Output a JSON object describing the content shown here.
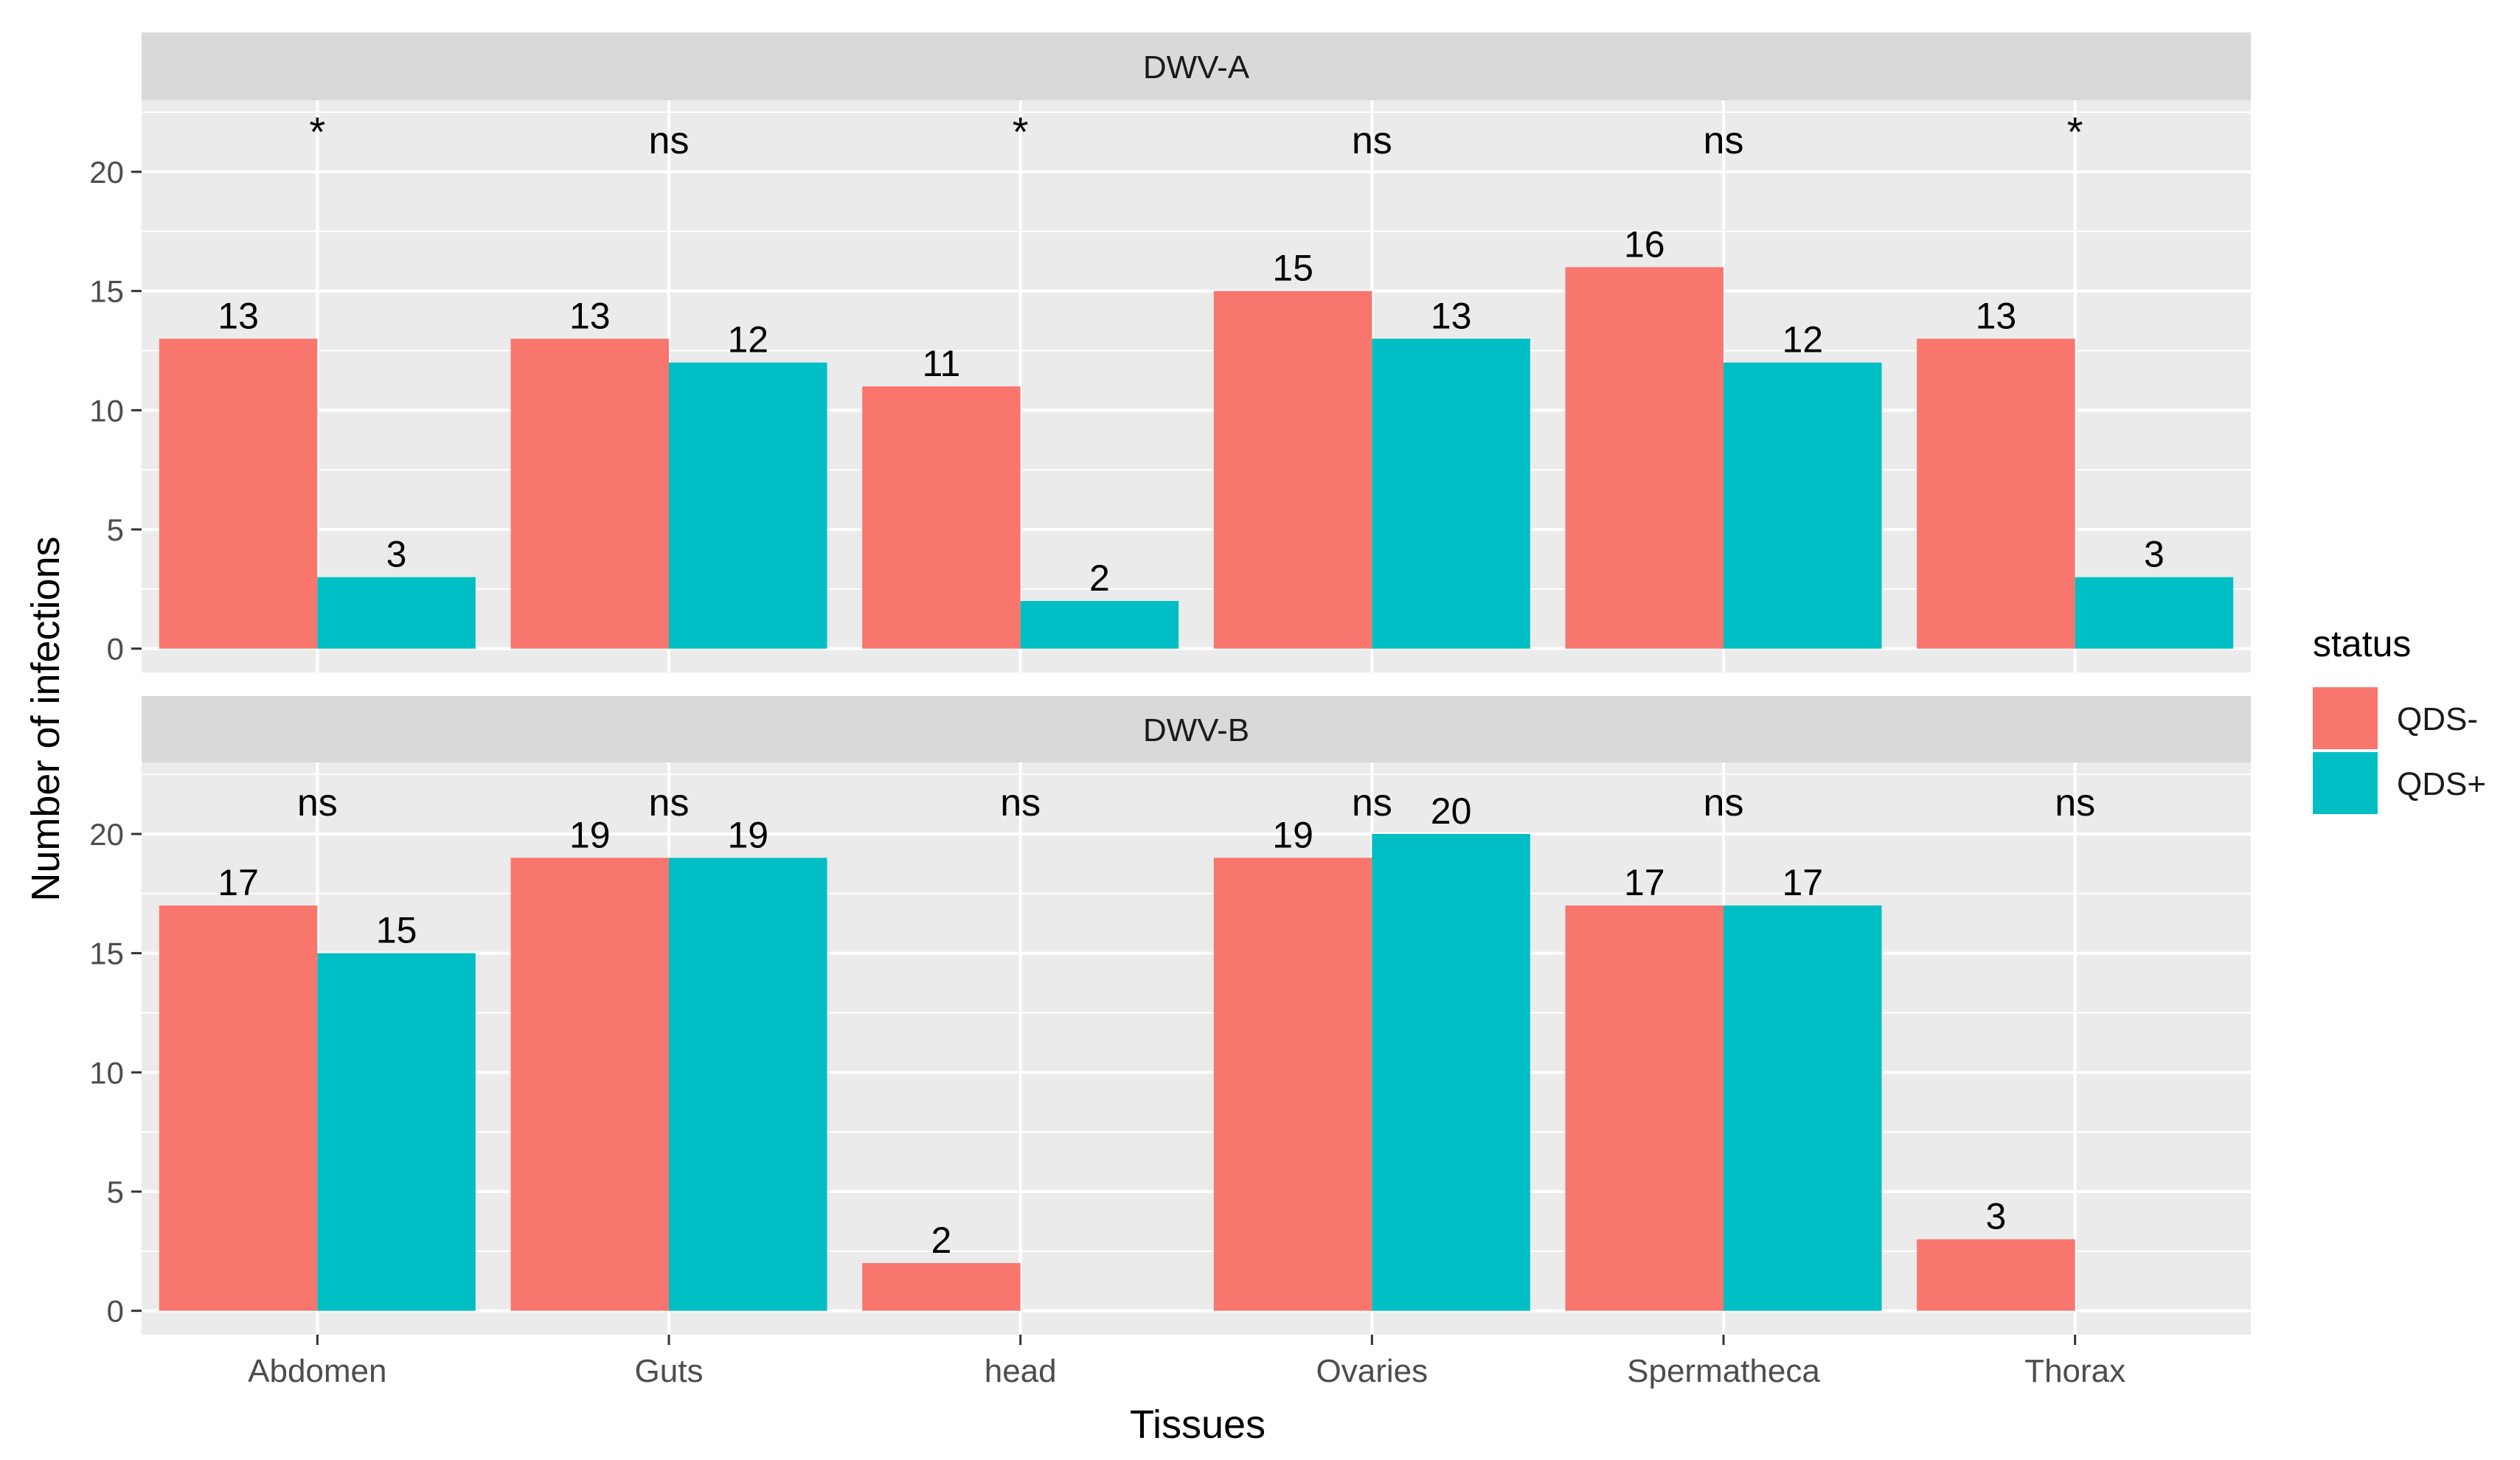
{
  "chart_data": {
    "type": "bar",
    "layout": "faceted",
    "xlabel": "Tissues",
    "ylabel": "Number of infections",
    "categories": [
      "Abdomen",
      "Guts",
      "head",
      "Ovaries",
      "Spermatheca",
      "Thorax"
    ],
    "y_ticks": [
      0,
      5,
      10,
      15,
      20
    ],
    "ylim": [
      -1,
      23
    ],
    "legend": {
      "title": "status",
      "position": "right",
      "entries": [
        {
          "label": "QDS-",
          "color": "#F8766D"
        },
        {
          "label": "QDS+",
          "color": "#00BFC4"
        }
      ]
    },
    "facets": [
      {
        "title": "DWV-A",
        "significance": [
          "*",
          "ns",
          "*",
          "ns",
          "ns",
          "*"
        ],
        "series": [
          {
            "name": "QDS-",
            "values": [
              13,
              13,
              11,
              15,
              16,
              13
            ]
          },
          {
            "name": "QDS+",
            "values": [
              3,
              12,
              2,
              13,
              12,
              3
            ]
          }
        ]
      },
      {
        "title": "DWV-B",
        "significance": [
          "ns",
          "ns",
          "ns",
          "ns",
          "ns",
          "ns"
        ],
        "series": [
          {
            "name": "QDS-",
            "values": [
              17,
              19,
              2,
              19,
              17,
              3
            ]
          },
          {
            "name": "QDS+",
            "values": [
              15,
              19,
              null,
              20,
              17,
              null
            ]
          }
        ]
      }
    ]
  },
  "colors": {
    "panel_bg": "#EBEBEB",
    "strip_bg": "#D9D9D9",
    "grid": "#FFFFFF",
    "text": "#1A1A1A",
    "tick_text": "#4D4D4D"
  }
}
